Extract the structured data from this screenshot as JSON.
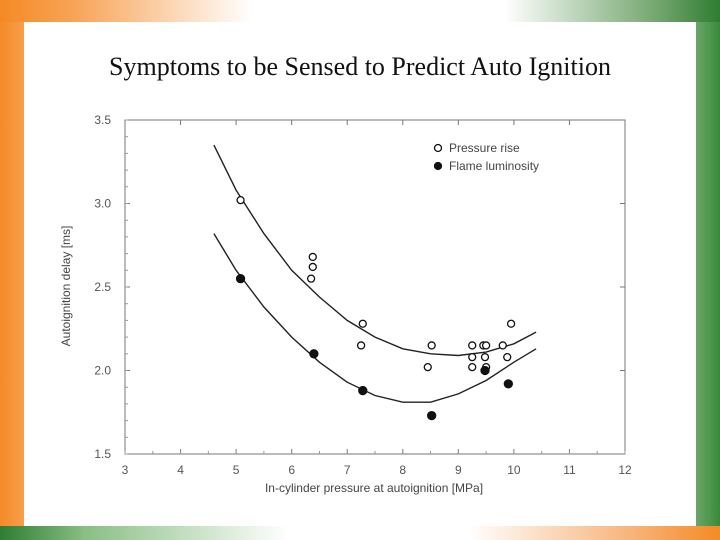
{
  "slide": {
    "title": "Symptoms to be Sensed to Predict Auto Ignition"
  },
  "chart_data": {
    "type": "scatter",
    "xlabel": "In-cylinder pressure at autoignition [MPa]",
    "ylabel": "Autoignition delay [ms]",
    "xlim": [
      3,
      12
    ],
    "ylim": [
      1.5,
      3.5
    ],
    "xticks": [
      3,
      4,
      5,
      6,
      7,
      8,
      9,
      10,
      11,
      12
    ],
    "yticks": [
      "1.5",
      "2.0",
      "2.5",
      "3.0",
      "3.5"
    ],
    "grid": false,
    "legend_position": "top-right",
    "series": [
      {
        "name": "Pressure rise",
        "marker": "open-circle",
        "points": [
          [
            5.08,
            3.02
          ],
          [
            6.38,
            2.68
          ],
          [
            6.38,
            2.62
          ],
          [
            6.35,
            2.55
          ],
          [
            7.28,
            2.28
          ],
          [
            7.25,
            2.15
          ],
          [
            8.45,
            2.02
          ],
          [
            8.52,
            2.15
          ],
          [
            9.25,
            2.15
          ],
          [
            9.25,
            2.08
          ],
          [
            9.25,
            2.02
          ],
          [
            9.45,
            2.15
          ],
          [
            9.5,
            2.15
          ],
          [
            9.48,
            2.08
          ],
          [
            9.5,
            2.02
          ],
          [
            9.8,
            2.15
          ],
          [
            9.88,
            2.08
          ],
          [
            9.95,
            2.28
          ]
        ],
        "fit": [
          [
            4.6,
            3.35
          ],
          [
            5.0,
            3.08
          ],
          [
            5.5,
            2.82
          ],
          [
            6.0,
            2.6
          ],
          [
            6.5,
            2.44
          ],
          [
            7.0,
            2.3
          ],
          [
            7.5,
            2.2
          ],
          [
            8.0,
            2.13
          ],
          [
            8.5,
            2.1
          ],
          [
            9.0,
            2.09
          ],
          [
            9.5,
            2.11
          ],
          [
            10.0,
            2.16
          ],
          [
            10.4,
            2.23
          ]
        ]
      },
      {
        "name": "Flame luminosity",
        "marker": "filled-circle",
        "points": [
          [
            5.08,
            2.55
          ],
          [
            6.4,
            2.1
          ],
          [
            7.28,
            1.88
          ],
          [
            8.52,
            1.73
          ],
          [
            9.48,
            2.0
          ],
          [
            9.9,
            1.92
          ]
        ],
        "fit": [
          [
            4.6,
            2.82
          ],
          [
            5.0,
            2.6
          ],
          [
            5.5,
            2.38
          ],
          [
            6.0,
            2.2
          ],
          [
            6.5,
            2.05
          ],
          [
            7.0,
            1.93
          ],
          [
            7.5,
            1.85
          ],
          [
            8.0,
            1.81
          ],
          [
            8.5,
            1.81
          ],
          [
            9.0,
            1.86
          ],
          [
            9.5,
            1.94
          ],
          [
            10.0,
            2.05
          ],
          [
            10.4,
            2.13
          ]
        ]
      }
    ]
  }
}
